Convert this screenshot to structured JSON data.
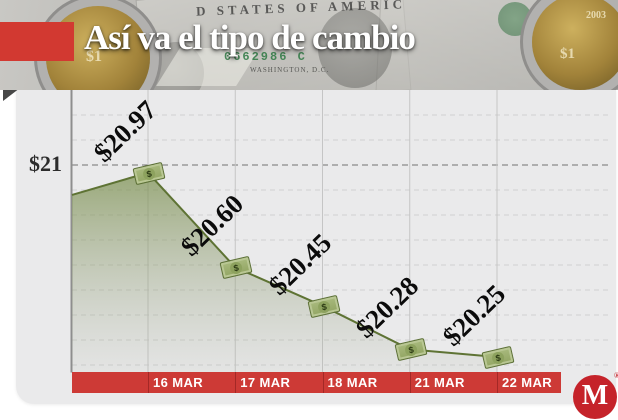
{
  "header": {
    "title": "Así va el tipo de cambio",
    "accent_red": "#d23931",
    "decor": {
      "arc_text": "D STATES OF AMERIC",
      "serial_number": "0662986 C",
      "fine_print": "WASHINGTON, D.C.",
      "coin_year": "2003",
      "coin_denomination": "$1"
    }
  },
  "chart_data": {
    "type": "area",
    "title": "Así va el tipo de cambio",
    "categories": [
      "16 MAR",
      "17 MAR",
      "18 MAR",
      "21 MAR",
      "22 MAR"
    ],
    "values": [
      20.97,
      20.6,
      20.45,
      20.28,
      20.25
    ],
    "point_labels": [
      "$20.97",
      "$20.60",
      "$20.45",
      "$20.28",
      "$20.25"
    ],
    "marker_symbol": "$",
    "y_axis": {
      "tick_label": "$21",
      "tick_value": 21
    },
    "lead_in_value": 20.883,
    "ylim": [
      20.14,
      21.25
    ],
    "grid": true,
    "legend": "none",
    "colors": {
      "line": "#5e7334",
      "area_top": "rgba(122,143,77,0.72)",
      "area_bottom": "rgba(170,176,160,0.10)",
      "axis_bar": "#cd3a36",
      "marker_fill": "#9db069",
      "marker_border": "#5c7036",
      "plot_background": "#eaeaeb"
    }
  },
  "footer": {
    "logo_letter": "M",
    "registered": "®",
    "logo_color": "#c5232a"
  }
}
